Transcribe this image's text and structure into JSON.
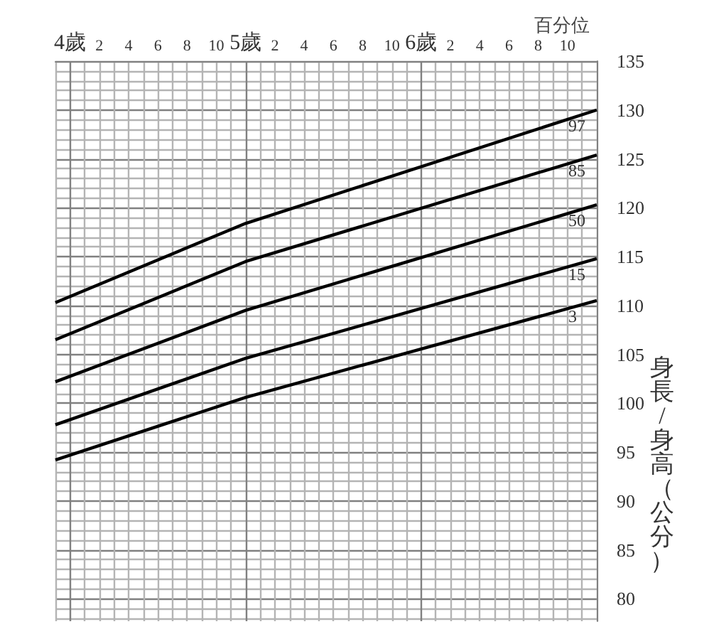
{
  "chart_data": {
    "type": "line",
    "ylabel": "身長/身高（公分）",
    "legend_title": "百分位",
    "categories": [
      null,
      "4歲",
      null,
      "2",
      null,
      "4",
      null,
      "6",
      null,
      "8",
      null,
      "10",
      null,
      "5歲",
      null,
      "2",
      null,
      "4",
      null,
      "6",
      null,
      "8",
      null,
      "10",
      null,
      "6歲",
      null,
      "2",
      null,
      "4",
      null,
      "6",
      null,
      "8",
      null,
      "10",
      null,
      null
    ],
    "ylim": [
      77.7,
      135
    ],
    "yticks": [
      {
        "value": 78,
        "label": null
      },
      {
        "value": 79,
        "label": null
      },
      80,
      {
        "value": 81,
        "label": null
      },
      {
        "value": 82,
        "label": null
      },
      {
        "value": 83,
        "label": null
      },
      {
        "value": 84,
        "label": null
      },
      85,
      {
        "value": 86,
        "label": null
      },
      {
        "value": 87,
        "label": null
      },
      {
        "value": 88,
        "label": null
      },
      {
        "value": 89,
        "label": null
      },
      90,
      {
        "value": 91,
        "label": null
      },
      {
        "value": 92,
        "label": null
      },
      {
        "value": 93,
        "label": null
      },
      {
        "value": 94,
        "label": null
      },
      95,
      {
        "value": 96,
        "label": null
      },
      {
        "value": 97,
        "label": null
      },
      {
        "value": 98,
        "label": null
      },
      {
        "value": 99,
        "label": null
      },
      100,
      {
        "value": 101,
        "label": null
      },
      {
        "value": 102,
        "label": null
      },
      {
        "value": 103,
        "label": null
      },
      {
        "value": 104,
        "label": null
      },
      105,
      {
        "value": 106,
        "label": null
      },
      {
        "value": 107,
        "label": null
      },
      {
        "value": 108,
        "label": null
      },
      {
        "value": 109,
        "label": null
      },
      110,
      {
        "value": 111,
        "label": null
      },
      {
        "value": 112,
        "label": null
      },
      {
        "value": 113,
        "label": null
      },
      {
        "value": 114,
        "label": null
      },
      115,
      {
        "value": 116,
        "label": null
      },
      {
        "value": 117,
        "label": null
      },
      {
        "value": 118,
        "label": null
      },
      {
        "value": 119,
        "label": null
      },
      120,
      {
        "value": 121,
        "label": null
      },
      {
        "value": 122,
        "label": null
      },
      {
        "value": 123,
        "label": null
      },
      {
        "value": 124,
        "label": null
      },
      125,
      {
        "value": 126,
        "label": null
      },
      {
        "value": 127,
        "label": null
      },
      {
        "value": 128,
        "label": null
      },
      {
        "value": 129,
        "label": null
      },
      130,
      {
        "value": 131,
        "label": null
      },
      {
        "value": 132,
        "label": null
      },
      {
        "value": 133,
        "label": null
      },
      {
        "value": 134,
        "label": null
      },
      135
    ],
    "series": [
      {
        "name": "97",
        "color": "#000000",
        "values": [
          110.3,
          null,
          null,
          null,
          null,
          null,
          null,
          null,
          null,
          null,
          null,
          null,
          null,
          118.4,
          null,
          null,
          null,
          null,
          null,
          null,
          null,
          null,
          null,
          null,
          null,
          null,
          null,
          null,
          null,
          null,
          null,
          null,
          null,
          null,
          null,
          null,
          null,
          130.0
        ]
      },
      {
        "name": "85",
        "color": "#000000",
        "values": [
          106.5,
          null,
          null,
          null,
          null,
          null,
          null,
          null,
          null,
          null,
          null,
          null,
          null,
          114.5,
          null,
          null,
          null,
          null,
          null,
          null,
          null,
          null,
          null,
          null,
          null,
          null,
          null,
          null,
          null,
          null,
          null,
          null,
          null,
          null,
          null,
          null,
          null,
          125.4
        ]
      },
      {
        "name": "50",
        "color": "#000000",
        "values": [
          102.2,
          null,
          null,
          null,
          null,
          null,
          null,
          null,
          null,
          null,
          null,
          null,
          null,
          109.5,
          null,
          null,
          null,
          null,
          null,
          null,
          null,
          null,
          null,
          null,
          null,
          null,
          null,
          null,
          null,
          null,
          null,
          null,
          null,
          null,
          null,
          null,
          null,
          120.3
        ]
      },
      {
        "name": "15",
        "color": "#000000",
        "values": [
          97.8,
          null,
          null,
          null,
          null,
          null,
          null,
          null,
          null,
          null,
          null,
          null,
          null,
          104.6,
          null,
          null,
          null,
          null,
          null,
          null,
          null,
          null,
          null,
          null,
          null,
          null,
          null,
          null,
          null,
          null,
          null,
          null,
          null,
          null,
          null,
          null,
          null,
          114.8
        ]
      },
      {
        "name": "3",
        "color": "#000000",
        "values": [
          94.2,
          null,
          null,
          null,
          null,
          null,
          null,
          null,
          null,
          null,
          null,
          null,
          null,
          100.6,
          null,
          null,
          null,
          null,
          null,
          null,
          null,
          null,
          null,
          null,
          null,
          null,
          null,
          null,
          null,
          null,
          null,
          null,
          null,
          null,
          null,
          null,
          null,
          110.5
        ]
      }
    ],
    "grid": true,
    "legend": false,
    "marker": "none",
    "line_style": "solid"
  }
}
